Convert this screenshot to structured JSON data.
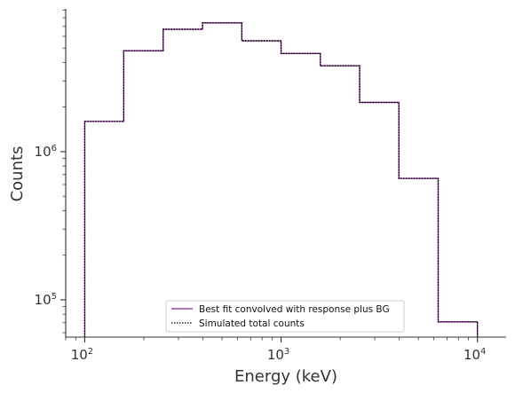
{
  "chart_data": {
    "type": "line",
    "x_scale": "log",
    "y_scale": "log",
    "xlabel": "Energy (keV)",
    "ylabel": "Counts",
    "xlim": [
      80,
      14000
    ],
    "ylim": [
      56000,
      9200000
    ],
    "x_ticks": [
      {
        "base": "10",
        "exp": "2",
        "value": 100
      },
      {
        "base": "10",
        "exp": "3",
        "value": 1000
      },
      {
        "base": "10",
        "exp": "4",
        "value": 10000
      }
    ],
    "y_ticks": [
      {
        "base": "10",
        "exp": "5",
        "value": 100000
      },
      {
        "base": "10",
        "exp": "6",
        "value": 1000000
      }
    ],
    "bin_edges": [
      100,
      158,
      251,
      398,
      631,
      1000,
      1585,
      2512,
      3981,
      6310,
      10000
    ],
    "series": [
      {
        "name": "Best fit convolved with response plus BG",
        "color": "#8b1a9b",
        "style": "solid",
        "values": [
          1600000,
          4800000,
          6700000,
          7400000,
          5600000,
          4600000,
          3800000,
          2150000,
          660000,
          71000
        ]
      },
      {
        "name": "Simulated total counts",
        "color": "#000000",
        "style": "dotted",
        "values": [
          1600000,
          4800000,
          6700000,
          7400000,
          5600000,
          4600000,
          3800000,
          2150000,
          660000,
          71000
        ]
      }
    ],
    "legend_position": "bottom-center",
    "grid": false
  }
}
